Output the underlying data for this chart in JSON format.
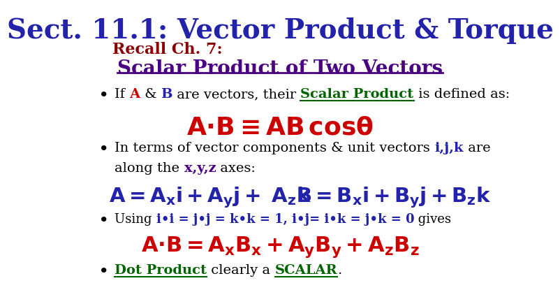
{
  "title": "Sect. 11.1: Vector Product & Torque",
  "title_color": "#2222AA",
  "title_fontsize": 28,
  "bg_color": "#FFFFFF",
  "recall_text": "Recall Ch. 7:",
  "recall_color": "#8B0000",
  "recall_fontsize": 16,
  "subtitle": "Scalar Product of Two Vectors",
  "subtitle_color": "#4B0082",
  "subtitle_fontsize": 20,
  "blue_color": "#2222AA",
  "red_color": "#CC0000",
  "green_color": "#006400",
  "purple_color": "#4B0082",
  "black_color": "#000000"
}
